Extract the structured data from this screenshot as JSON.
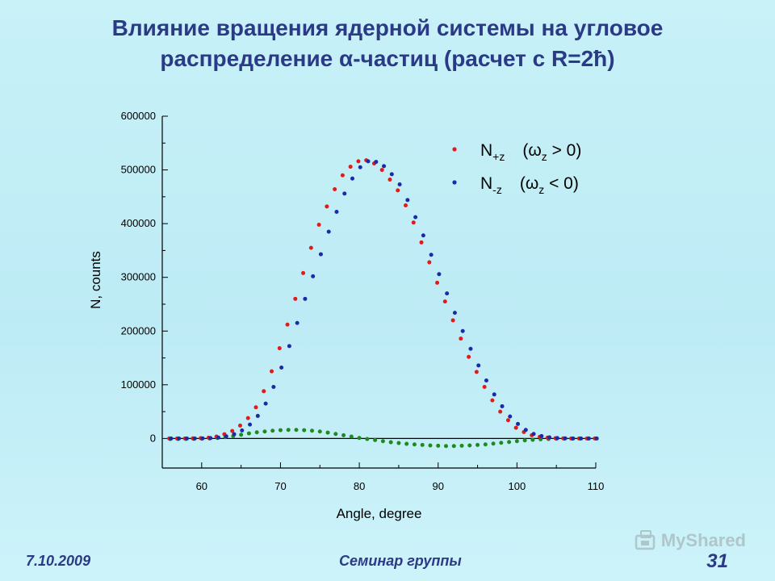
{
  "slide": {
    "title_line1": "Влияние вращения ядерной системы на угловое",
    "title_line2": "распределение α-частиц  (расчет с R=2ħ)",
    "footer_date": "7.10.2009",
    "footer_seminar": "Семинар группы",
    "page_number": "31",
    "watermark": "MyShared"
  },
  "legend": [
    {
      "main": "N",
      "sub": "+z",
      "cond_open": "(ω",
      "cond_sub": "z",
      "cond_close": " > 0)",
      "color": "#e21a1a"
    },
    {
      "main": "N",
      "sub": "-z",
      "cond_open": "(ω",
      "cond_sub": "z",
      "cond_close": " < 0)",
      "color": "#1a2aa8"
    }
  ],
  "chart_data": {
    "type": "scatter",
    "xlabel": "Angle, degree",
    "ylabel": "N, counts",
    "xlim": [
      55,
      110
    ],
    "ylim": [
      -55000,
      600000
    ],
    "x_ticks": [
      60,
      70,
      80,
      90,
      100,
      110
    ],
    "y_ticks": [
      0,
      100000,
      200000,
      300000,
      400000,
      500000,
      600000
    ],
    "x_tick_labels": [
      "60",
      "70",
      "80",
      "90",
      "100",
      "110"
    ],
    "y_tick_labels": [
      "0",
      "100000",
      "200000",
      "300000",
      "400000",
      "500000",
      "600000"
    ],
    "x": [
      56,
      57,
      58,
      59,
      60,
      61,
      62,
      63,
      64,
      65,
      66,
      67,
      68,
      69,
      70,
      71,
      72,
      73,
      74,
      75,
      76,
      77,
      78,
      79,
      80,
      81,
      82,
      83,
      84,
      85,
      86,
      87,
      88,
      89,
      90,
      91,
      92,
      93,
      94,
      95,
      96,
      97,
      98,
      99,
      100,
      101,
      102,
      103,
      104,
      105,
      106,
      107,
      108,
      109,
      110
    ],
    "series": [
      {
        "name": "N+z",
        "color": "#e21a1a",
        "values": [
          0,
          0,
          0,
          200,
          600,
          1500,
          3500,
          8000,
          14000,
          24000,
          38000,
          58000,
          88000,
          125000,
          168000,
          212000,
          260000,
          308000,
          355000,
          398000,
          432000,
          464000,
          490000,
          506000,
          516000,
          518000,
          512000,
          500000,
          482000,
          462000,
          434000,
          402000,
          365000,
          328000,
          290000,
          255000,
          220000,
          186000,
          152000,
          124000,
          96000,
          71000,
          50000,
          34000,
          20000,
          12000,
          6000,
          3000,
          1500,
          600,
          300,
          100,
          0,
          0,
          0
        ]
      },
      {
        "name": "N-z",
        "color": "#1a2aa8",
        "values": [
          0,
          0,
          0,
          100,
          300,
          800,
          1800,
          4000,
          8000,
          15000,
          26000,
          42000,
          65000,
          96000,
          132000,
          172000,
          215000,
          260000,
          302000,
          343000,
          385000,
          422000,
          456000,
          484000,
          505000,
          516000,
          515000,
          507000,
          492000,
          473000,
          444000,
          412000,
          378000,
          342000,
          306000,
          270000,
          234000,
          200000,
          167000,
          136000,
          108000,
          82000,
          60000,
          41000,
          27000,
          16000,
          8500,
          4500,
          2000,
          800,
          300,
          100,
          0,
          0,
          0
        ]
      },
      {
        "name": "difference",
        "color": "#1f8a1f",
        "values": [
          -1000,
          -1000,
          -900,
          -700,
          -400,
          0,
          1000,
          2500,
          4500,
          7000,
          9500,
          11500,
          13000,
          14500,
          15500,
          16000,
          16000,
          15500,
          14500,
          13000,
          11000,
          8500,
          6000,
          3500,
          1000,
          -1000,
          -3000,
          -5000,
          -7000,
          -8500,
          -10000,
          -11000,
          -12000,
          -13000,
          -13500,
          -14000,
          -14000,
          -13500,
          -13000,
          -12000,
          -11000,
          -9500,
          -8000,
          -6500,
          -5000,
          -3500,
          -2500,
          -1500,
          -1000,
          -500,
          -300,
          -100,
          0,
          0,
          0
        ]
      }
    ]
  }
}
